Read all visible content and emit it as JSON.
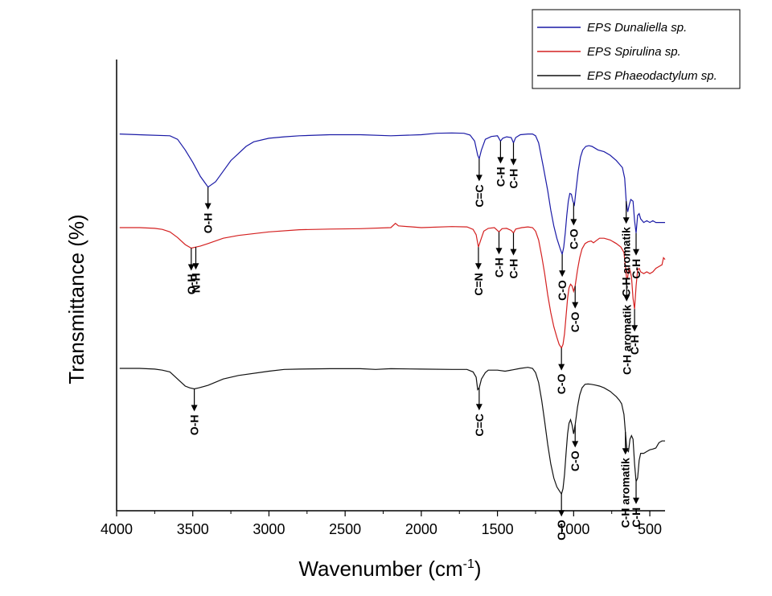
{
  "chart_data": {
    "type": "line",
    "xlabel": "Wavenumber (cm",
    "xlabel_sup": "-1",
    "xlabel_suffix": ")",
    "ylabel": "Transmittance (%)",
    "xlim": [
      4000,
      400
    ],
    "x_reversed": true,
    "x_ticks": [
      4000,
      3500,
      3000,
      2500,
      2000,
      1500,
      1000,
      500
    ],
    "y_ticks_shown": false,
    "grid": false,
    "legend_position": "top-right",
    "series": [
      {
        "name": "EPS Dunaliella sp.",
        "color": "#1a1aa6",
        "points": [
          [
            3980,
            0.14
          ],
          [
            3800,
            0.143
          ],
          [
            3650,
            0.145
          ],
          [
            3600,
            0.155
          ],
          [
            3550,
            0.185
          ],
          [
            3500,
            0.22
          ],
          [
            3450,
            0.26
          ],
          [
            3400,
            0.29
          ],
          [
            3350,
            0.275
          ],
          [
            3300,
            0.245
          ],
          [
            3250,
            0.215
          ],
          [
            3200,
            0.195
          ],
          [
            3150,
            0.175
          ],
          [
            3100,
            0.162
          ],
          [
            3000,
            0.152
          ],
          [
            2900,
            0.148
          ],
          [
            2800,
            0.145
          ],
          [
            2600,
            0.142
          ],
          [
            2400,
            0.142
          ],
          [
            2200,
            0.145
          ],
          [
            2000,
            0.142
          ],
          [
            1900,
            0.138
          ],
          [
            1800,
            0.137
          ],
          [
            1720,
            0.138
          ],
          [
            1680,
            0.143
          ],
          [
            1650,
            0.16
          ],
          [
            1630,
            0.2
          ],
          [
            1620,
            0.21
          ],
          [
            1605,
            0.185
          ],
          [
            1580,
            0.155
          ],
          [
            1540,
            0.147
          ],
          [
            1500,
            0.145
          ],
          [
            1480,
            0.16
          ],
          [
            1465,
            0.152
          ],
          [
            1440,
            0.148
          ],
          [
            1410,
            0.15
          ],
          [
            1395,
            0.165
          ],
          [
            1380,
            0.15
          ],
          [
            1350,
            0.142
          ],
          [
            1300,
            0.14
          ],
          [
            1270,
            0.14
          ],
          [
            1250,
            0.145
          ],
          [
            1230,
            0.165
          ],
          [
            1200,
            0.23
          ],
          [
            1170,
            0.3
          ],
          [
            1150,
            0.355
          ],
          [
            1130,
            0.4
          ],
          [
            1110,
            0.435
          ],
          [
            1090,
            0.462
          ],
          [
            1075,
            0.48
          ],
          [
            1065,
            0.46
          ],
          [
            1055,
            0.42
          ],
          [
            1045,
            0.37
          ],
          [
            1035,
            0.33
          ],
          [
            1025,
            0.308
          ],
          [
            1015,
            0.31
          ],
          [
            1005,
            0.33
          ],
          [
            995,
            0.34
          ],
          [
            985,
            0.3
          ],
          [
            970,
            0.245
          ],
          [
            955,
            0.205
          ],
          [
            940,
            0.185
          ],
          [
            920,
            0.175
          ],
          [
            900,
            0.173
          ],
          [
            880,
            0.175
          ],
          [
            860,
            0.18
          ],
          [
            840,
            0.185
          ],
          [
            800,
            0.19
          ],
          [
            760,
            0.2
          ],
          [
            720,
            0.215
          ],
          [
            700,
            0.225
          ],
          [
            680,
            0.235
          ],
          [
            665,
            0.265
          ],
          [
            655,
            0.33
          ],
          [
            645,
            0.36
          ],
          [
            635,
            0.34
          ],
          [
            625,
            0.325
          ],
          [
            610,
            0.33
          ],
          [
            600,
            0.385
          ],
          [
            590,
            0.42
          ],
          [
            580,
            0.37
          ],
          [
            570,
            0.365
          ],
          [
            560,
            0.38
          ],
          [
            540,
            0.39
          ],
          [
            520,
            0.385
          ],
          [
            500,
            0.39
          ],
          [
            480,
            0.385
          ],
          [
            460,
            0.39
          ],
          [
            440,
            0.39
          ],
          [
            420,
            0.39
          ],
          [
            400,
            0.39
          ]
        ]
      },
      {
        "name": "EPS Spirulina sp.",
        "color": "#d42020",
        "points": [
          [
            3980,
            0.0
          ],
          [
            3850,
            0.0
          ],
          [
            3750,
            0.002
          ],
          [
            3700,
            0.005
          ],
          [
            3650,
            0.012
          ],
          [
            3600,
            0.028
          ],
          [
            3550,
            0.048
          ],
          [
            3510,
            0.058
          ],
          [
            3480,
            0.055
          ],
          [
            3450,
            0.052
          ],
          [
            3400,
            0.045
          ],
          [
            3300,
            0.03
          ],
          [
            3200,
            0.022
          ],
          [
            3000,
            0.012
          ],
          [
            2800,
            0.006
          ],
          [
            2600,
            0.004
          ],
          [
            2400,
            0.003
          ],
          [
            2200,
            0.0
          ],
          [
            2170,
            -0.012
          ],
          [
            2150,
            -0.005
          ],
          [
            2000,
            0.0
          ],
          [
            1800,
            -0.003
          ],
          [
            1700,
            -0.002
          ],
          [
            1660,
            0.005
          ],
          [
            1640,
            0.02
          ],
          [
            1625,
            0.055
          ],
          [
            1610,
            0.035
          ],
          [
            1590,
            0.01
          ],
          [
            1560,
            0.002
          ],
          [
            1520,
            0.0
          ],
          [
            1490,
            0.012
          ],
          [
            1470,
            0.003
          ],
          [
            1440,
            0.002
          ],
          [
            1410,
            0.008
          ],
          [
            1395,
            0.015
          ],
          [
            1380,
            0.004
          ],
          [
            1340,
            0.0
          ],
          [
            1300,
            -0.002
          ],
          [
            1270,
            0.0
          ],
          [
            1250,
            0.01
          ],
          [
            1230,
            0.035
          ],
          [
            1210,
            0.08
          ],
          [
            1190,
            0.13
          ],
          [
            1170,
            0.19
          ],
          [
            1150,
            0.24
          ],
          [
            1130,
            0.28
          ],
          [
            1110,
            0.31
          ],
          [
            1095,
            0.33
          ],
          [
            1080,
            0.34
          ],
          [
            1070,
            0.33
          ],
          [
            1060,
            0.3
          ],
          [
            1050,
            0.25
          ],
          [
            1040,
            0.2
          ],
          [
            1030,
            0.17
          ],
          [
            1020,
            0.16
          ],
          [
            1010,
            0.165
          ],
          [
            1000,
            0.18
          ],
          [
            990,
            0.165
          ],
          [
            975,
            0.12
          ],
          [
            960,
            0.085
          ],
          [
            945,
            0.06
          ],
          [
            925,
            0.045
          ],
          [
            905,
            0.04
          ],
          [
            885,
            0.038
          ],
          [
            870,
            0.043
          ],
          [
            855,
            0.038
          ],
          [
            830,
            0.03
          ],
          [
            800,
            0.03
          ],
          [
            760,
            0.035
          ],
          [
            720,
            0.045
          ],
          [
            690,
            0.055
          ],
          [
            670,
            0.07
          ],
          [
            660,
            0.11
          ],
          [
            652,
            0.145
          ],
          [
            645,
            0.14
          ],
          [
            638,
            0.115
          ],
          [
            630,
            0.12
          ],
          [
            620,
            0.14
          ],
          [
            610,
            0.2
          ],
          [
            600,
            0.23
          ],
          [
            590,
            0.165
          ],
          [
            580,
            0.12
          ],
          [
            570,
            0.115
          ],
          [
            560,
            0.125
          ],
          [
            540,
            0.13
          ],
          [
            520,
            0.125
          ],
          [
            500,
            0.13
          ],
          [
            480,
            0.125
          ],
          [
            460,
            0.115
          ],
          [
            440,
            0.11
          ],
          [
            420,
            0.105
          ],
          [
            410,
            0.085
          ],
          [
            400,
            0.09
          ]
        ]
      },
      {
        "name": "EPS Phaeodactylum sp.",
        "color": "#111111",
        "points": [
          [
            3980,
            0.0
          ],
          [
            3850,
            0.0
          ],
          [
            3750,
            0.002
          ],
          [
            3700,
            0.005
          ],
          [
            3650,
            0.01
          ],
          [
            3600,
            0.03
          ],
          [
            3550,
            0.05
          ],
          [
            3520,
            0.055
          ],
          [
            3490,
            0.058
          ],
          [
            3460,
            0.055
          ],
          [
            3400,
            0.048
          ],
          [
            3300,
            0.03
          ],
          [
            3200,
            0.02
          ],
          [
            3000,
            0.008
          ],
          [
            2900,
            0.003
          ],
          [
            2800,
            0.002
          ],
          [
            2600,
            0.001
          ],
          [
            2400,
            0.001
          ],
          [
            2300,
            0.003
          ],
          [
            2200,
            0.001
          ],
          [
            2000,
            0.002
          ],
          [
            1800,
            0.003
          ],
          [
            1700,
            0.003
          ],
          [
            1660,
            0.01
          ],
          [
            1640,
            0.025
          ],
          [
            1630,
            0.06
          ],
          [
            1620,
            0.055
          ],
          [
            1605,
            0.03
          ],
          [
            1580,
            0.012
          ],
          [
            1560,
            0.005
          ],
          [
            1500,
            0.005
          ],
          [
            1450,
            0.008
          ],
          [
            1400,
            0.004
          ],
          [
            1350,
            0.0
          ],
          [
            1300,
            -0.003
          ],
          [
            1270,
            0.0
          ],
          [
            1250,
            0.012
          ],
          [
            1230,
            0.04
          ],
          [
            1210,
            0.09
          ],
          [
            1190,
            0.15
          ],
          [
            1170,
            0.215
          ],
          [
            1150,
            0.27
          ],
          [
            1130,
            0.31
          ],
          [
            1110,
            0.335
          ],
          [
            1095,
            0.345
          ],
          [
            1080,
            0.355
          ],
          [
            1070,
            0.34
          ],
          [
            1060,
            0.3
          ],
          [
            1050,
            0.24
          ],
          [
            1040,
            0.185
          ],
          [
            1030,
            0.155
          ],
          [
            1020,
            0.145
          ],
          [
            1010,
            0.16
          ],
          [
            1000,
            0.185
          ],
          [
            990,
            0.16
          ],
          [
            975,
            0.11
          ],
          [
            960,
            0.075
          ],
          [
            945,
            0.055
          ],
          [
            925,
            0.045
          ],
          [
            905,
            0.044
          ],
          [
            885,
            0.045
          ],
          [
            860,
            0.047
          ],
          [
            830,
            0.05
          ],
          [
            800,
            0.055
          ],
          [
            760,
            0.065
          ],
          [
            720,
            0.08
          ],
          [
            700,
            0.09
          ],
          [
            685,
            0.1
          ],
          [
            670,
            0.13
          ],
          [
            660,
            0.18
          ],
          [
            650,
            0.23
          ],
          [
            640,
            0.235
          ],
          [
            630,
            0.2
          ],
          [
            620,
            0.19
          ],
          [
            610,
            0.2
          ],
          [
            600,
            0.27
          ],
          [
            590,
            0.32
          ],
          [
            580,
            0.31
          ],
          [
            570,
            0.26
          ],
          [
            560,
            0.24
          ],
          [
            540,
            0.24
          ],
          [
            520,
            0.235
          ],
          [
            500,
            0.23
          ],
          [
            480,
            0.228
          ],
          [
            460,
            0.225
          ],
          [
            440,
            0.21
          ],
          [
            420,
            0.205
          ],
          [
            400,
            0.205
          ]
        ]
      }
    ],
    "annotations": [
      {
        "series": 0,
        "text": "O-H",
        "x": 3400
      },
      {
        "series": 0,
        "text": "C=C",
        "x": 1620
      },
      {
        "series": 0,
        "text": "C-H",
        "x": 1480
      },
      {
        "series": 0,
        "text": "C-H",
        "x": 1395
      },
      {
        "series": 0,
        "text": "C-O",
        "x": 1000
      },
      {
        "series": 0,
        "text": "C-O",
        "x": 1075
      },
      {
        "series": 0,
        "text": "C-H aromatik",
        "x": 655
      },
      {
        "series": 0,
        "text": "C-H",
        "x": 590
      },
      {
        "series": 1,
        "text": "O-H",
        "x": 3510
      },
      {
        "series": 1,
        "text": "N-H",
        "x": 3480
      },
      {
        "series": 1,
        "text": "C=N",
        "x": 1625
      },
      {
        "series": 1,
        "text": "C-H",
        "x": 1490
      },
      {
        "series": 1,
        "text": "C-H",
        "x": 1395
      },
      {
        "series": 1,
        "text": "C-O",
        "x": 990
      },
      {
        "series": 1,
        "text": "C-O",
        "x": 1080
      },
      {
        "series": 1,
        "text": "C-H aromatik",
        "x": 652
      },
      {
        "series": 1,
        "text": "C-H",
        "x": 600
      },
      {
        "series": 2,
        "text": "O-H",
        "x": 3490
      },
      {
        "series": 2,
        "text": "C=C",
        "x": 1620
      },
      {
        "series": 2,
        "text": "C-O",
        "x": 990
      },
      {
        "series": 2,
        "text": "C-O",
        "x": 1080
      },
      {
        "series": 2,
        "text": "C-H aromatik",
        "x": 660
      },
      {
        "series": 2,
        "text": "C-H",
        "x": 590
      }
    ]
  }
}
